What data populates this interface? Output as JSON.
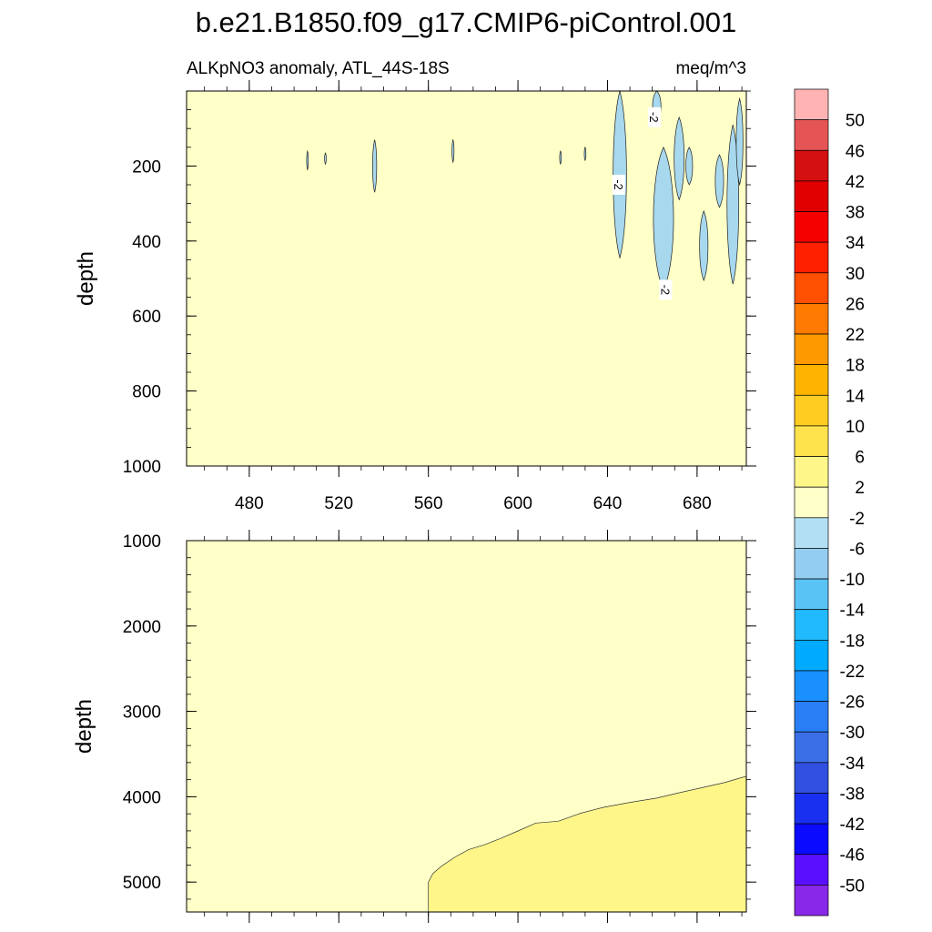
{
  "chart_data": {
    "type": "contour",
    "title": "b.e21.B1850.f09_g17.CMIP6-piControl.001",
    "subtitle_left": "ALKpNO3 anomaly, ATL_44S-18S",
    "subtitle_right": "meq/m^3",
    "ylabel": "depth",
    "xlim": [
      452,
      702
    ],
    "x_ticks": [
      "480",
      "520",
      "560",
      "600",
      "640",
      "680"
    ],
    "x_tick_values": [
      480,
      520,
      560,
      600,
      640,
      680
    ],
    "upper_panel": {
      "ylim": [
        0,
        1000
      ],
      "y_ticks": [
        "200",
        "400",
        "600",
        "800",
        "1000"
      ],
      "y_tick_values": [
        200,
        400,
        600,
        800,
        1000
      ],
      "background_fill": "#ffffc8",
      "contour_labels": [
        "-2",
        "-2",
        "-2"
      ],
      "contour_label_positions": [
        [
          661,
          70
        ],
        [
          645,
          250
        ],
        [
          666,
          530
        ]
      ],
      "negative_regions": [
        {
          "x": 645.5,
          "y_top": 0,
          "y_bottom": 445,
          "width": 4
        },
        {
          "x": 662,
          "y_top": 0,
          "y_bottom": 80,
          "width": 2.5
        },
        {
          "x": 665,
          "y_top": 150,
          "y_bottom": 530,
          "width": 6
        },
        {
          "x": 672,
          "y_top": 70,
          "y_bottom": 290,
          "width": 3
        },
        {
          "x": 676.5,
          "y_top": 150,
          "y_bottom": 250,
          "width": 2
        },
        {
          "x": 683,
          "y_top": 320,
          "y_bottom": 505,
          "width": 2.5
        },
        {
          "x": 690,
          "y_top": 170,
          "y_bottom": 310,
          "width": 2.5
        },
        {
          "x": 696,
          "y_top": 90,
          "y_bottom": 515,
          "width": 3.5
        },
        {
          "x": 699,
          "y_top": 20,
          "y_bottom": 250,
          "width": 2
        },
        {
          "x": 536,
          "y_top": 130,
          "y_bottom": 270,
          "width": 1.2
        },
        {
          "x": 571,
          "y_top": 130,
          "y_bottom": 190,
          "width": 0.6
        },
        {
          "x": 506,
          "y_top": 160,
          "y_bottom": 210,
          "width": 0.5
        },
        {
          "x": 619,
          "y_top": 160,
          "y_bottom": 195,
          "width": 0.5
        },
        {
          "x": 630,
          "y_top": 150,
          "y_bottom": 185,
          "width": 0.5
        },
        {
          "x": 514,
          "y_top": 165,
          "y_bottom": 195,
          "width": 0.5
        }
      ]
    },
    "lower_panel": {
      "ylim": [
        1000,
        5350
      ],
      "y_ticks": [
        "1000",
        "2000",
        "3000",
        "4000",
        "5000"
      ],
      "y_tick_values": [
        1000,
        2000,
        3000,
        4000,
        5000
      ],
      "background_fill": "#ffffc8",
      "positive_region_fill": "#fff68a",
      "positive_region_boundary": [
        [
          560,
          5350
        ],
        [
          560,
          5000
        ],
        [
          562,
          4900
        ],
        [
          566,
          4800
        ],
        [
          572,
          4700
        ],
        [
          578,
          4620
        ],
        [
          585,
          4550
        ],
        [
          592,
          4470
        ],
        [
          600,
          4400
        ],
        [
          608,
          4330
        ],
        [
          618,
          4270
        ],
        [
          628,
          4200
        ],
        [
          638,
          4130
        ],
        [
          650,
          4060
        ],
        [
          662,
          4000
        ],
        [
          672,
          3960
        ],
        [
          682,
          3900
        ],
        [
          692,
          3820
        ],
        [
          702,
          3760
        ],
        [
          702,
          5350
        ]
      ]
    },
    "colorbar": {
      "labels": [
        "50",
        "46",
        "42",
        "38",
        "34",
        "30",
        "26",
        "22",
        "18",
        "14",
        "10",
        "6",
        "2",
        "-2",
        "-6",
        "-10",
        "-14",
        "-18",
        "-22",
        "-26",
        "-30",
        "-34",
        "-38",
        "-42",
        "-46",
        "-50"
      ],
      "colors": [
        "#ffb3b3",
        "#e65555",
        "#d41010",
        "#e00000",
        "#f50000",
        "#ff2000",
        "#ff4f00",
        "#ff7a00",
        "#ff9900",
        "#ffb400",
        "#ffcc22",
        "#ffe34c",
        "#fff68a",
        "#ffffc8",
        "#b3dff5",
        "#93cdf0",
        "#5ac3f5",
        "#22baff",
        "#00aaff",
        "#1a90ff",
        "#2a7ef5",
        "#3a6fe8",
        "#3050e0",
        "#1a30f0",
        "#0a0aff",
        "#5a10ff",
        "#8828e8"
      ]
    }
  }
}
